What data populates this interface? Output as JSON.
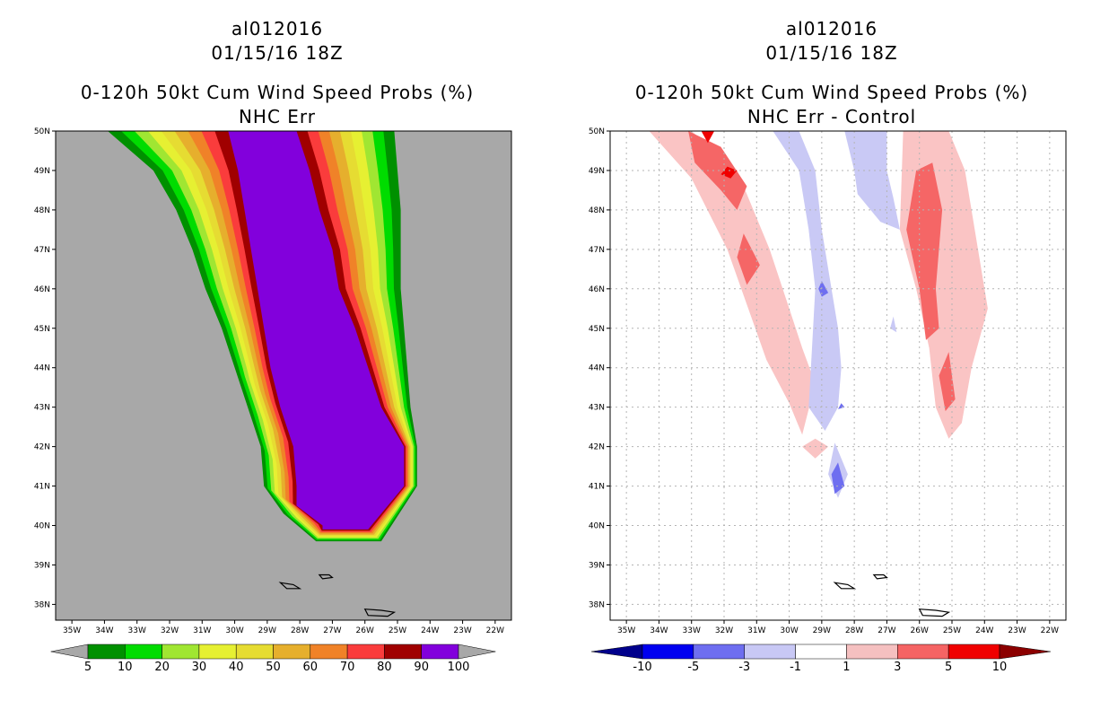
{
  "chart_data": [
    {
      "type": "map-filled-contour",
      "storm_id": "al012016",
      "datetime": "01/15/16 18Z",
      "title": "0-120h 50kt Cum Wind Speed Probs (%)",
      "subtitle": "NHC Err",
      "lon_range": [
        -35.5,
        -21.5
      ],
      "lat_range": [
        37.6,
        50
      ],
      "x_tick_labels": [
        "35W",
        "34W",
        "33W",
        "32W",
        "31W",
        "30W",
        "29W",
        "28W",
        "27W",
        "26W",
        "25W",
        "24W",
        "23W",
        "22W"
      ],
      "y_tick_labels": [
        "38N",
        "39N",
        "40N",
        "41N",
        "42N",
        "43N",
        "44N",
        "45N",
        "46N",
        "47N",
        "48N",
        "49N",
        "50N"
      ],
      "colorbar": {
        "levels": [
          "5",
          "10",
          "20",
          "30",
          "40",
          "50",
          "60",
          "70",
          "80",
          "90",
          "100"
        ],
        "colors": [
          "#a8a8a8",
          "#009000",
          "#00dc00",
          "#a0e632",
          "#e6f032",
          "#e6dc32",
          "#e6af2d",
          "#f08228",
          "#fa3c3c",
          "#a00000",
          "#8200dc",
          "#a8a8a8"
        ]
      },
      "band_colors": [
        "#009000",
        "#00dc00",
        "#a0e632",
        "#e6f032",
        "#e6dc32",
        "#e6af2d",
        "#f08228",
        "#fa3c3c",
        "#a00000"
      ],
      "core_color": "#8200dc",
      "background_color": "#a8a8a8",
      "swath_left_edge": [
        [
          -33.9,
          50
        ],
        [
          -32.5,
          49
        ],
        [
          -31.8,
          48
        ],
        [
          -31.3,
          47
        ],
        [
          -30.9,
          46
        ],
        [
          -30.4,
          45
        ],
        [
          -30,
          44
        ],
        [
          -29.6,
          43
        ],
        [
          -29.2,
          42
        ],
        [
          -29.1,
          41
        ],
        [
          -28.5,
          40.3
        ],
        [
          -27.5,
          39.6
        ]
      ],
      "swath_right_edge": [
        [
          -25.1,
          50
        ],
        [
          -25,
          49
        ],
        [
          -24.9,
          48
        ],
        [
          -24.9,
          47
        ],
        [
          -24.9,
          46
        ],
        [
          -24.8,
          45
        ],
        [
          -24.7,
          44
        ],
        [
          -24.6,
          43
        ],
        [
          -24.4,
          42
        ],
        [
          -24.4,
          41
        ],
        [
          -25.5,
          39.6
        ]
      ],
      "core_left_edge": [
        [
          -30.2,
          50
        ],
        [
          -29.9,
          49
        ],
        [
          -29.7,
          48
        ],
        [
          -29.5,
          47
        ],
        [
          -29.3,
          46
        ],
        [
          -29.1,
          45
        ],
        [
          -28.9,
          44
        ],
        [
          -28.6,
          43
        ],
        [
          -28.2,
          42
        ],
        [
          -28.1,
          41
        ],
        [
          -28.1,
          40.5
        ],
        [
          -27.3,
          40
        ],
        [
          -27.3,
          39.9
        ]
      ],
      "core_right_edge": [
        [
          -28.1,
          50
        ],
        [
          -27.7,
          49
        ],
        [
          -27.4,
          48
        ],
        [
          -27,
          47
        ],
        [
          -26.8,
          46
        ],
        [
          -26.3,
          45
        ],
        [
          -25.9,
          44
        ],
        [
          -25.5,
          43
        ],
        [
          -24.8,
          42
        ],
        [
          -24.8,
          41
        ],
        [
          -25.9,
          39.9
        ]
      ]
    },
    {
      "type": "map-filled-contour",
      "storm_id": "al012016",
      "datetime": "01/15/16 18Z",
      "title": "0-120h 50kt Cum Wind Speed Probs (%)",
      "subtitle": "NHC Err - Control",
      "lon_range": [
        -35.5,
        -21.5
      ],
      "lat_range": [
        37.6,
        50
      ],
      "x_tick_labels": [
        "35W",
        "34W",
        "33W",
        "32W",
        "31W",
        "30W",
        "29W",
        "28W",
        "27W",
        "26W",
        "25W",
        "24W",
        "23W",
        "22W"
      ],
      "y_tick_labels": [
        "38N",
        "39N",
        "40N",
        "41N",
        "42N",
        "43N",
        "44N",
        "45N",
        "46N",
        "47N",
        "48N",
        "49N",
        "50N"
      ],
      "colorbar": {
        "levels": [
          "-10",
          "-5",
          "-3",
          "-1",
          "1",
          "3",
          "5",
          "10"
        ],
        "colors": [
          "#00008c",
          "#0000f0",
          "#6e6ef0",
          "#c8c8f5",
          "#ffffff",
          "#f5c0c0",
          "#f56464",
          "#f00000",
          "#8c0000"
        ]
      },
      "positive_light_color": "#fac4c4",
      "positive_medium_color": "#f56666",
      "positive_strong_color": "#f00000",
      "negative_light_color": "#c9c9f5",
      "negative_medium_color": "#6e6ef0",
      "positive_light_regions": [
        [
          [
            -34.3,
            50
          ],
          [
            -33,
            50
          ],
          [
            -31.6,
            49
          ],
          [
            -30.6,
            47
          ],
          [
            -30,
            45.5
          ],
          [
            -29.6,
            44.5
          ],
          [
            -29.2,
            43.6
          ],
          [
            -29.6,
            42.3
          ],
          [
            -30,
            43.1
          ],
          [
            -30.7,
            44.2
          ],
          [
            -31.3,
            45.6
          ],
          [
            -31.9,
            47
          ],
          [
            -33,
            48.8
          ]
        ],
        [
          [
            -25.1,
            50
          ],
          [
            -24.6,
            49
          ],
          [
            -24.2,
            47
          ],
          [
            -23.9,
            45.5
          ],
          [
            -24.4,
            44
          ],
          [
            -24.7,
            42.6
          ],
          [
            -25.1,
            42.2
          ],
          [
            -25.5,
            43
          ],
          [
            -25.7,
            44.5
          ],
          [
            -26.1,
            46
          ],
          [
            -26.6,
            47.5
          ],
          [
            -26.5,
            50
          ]
        ],
        [
          [
            -29.2,
            42.2
          ],
          [
            -28.8,
            42
          ],
          [
            -29.2,
            41.7
          ],
          [
            -29.6,
            42
          ]
        ]
      ],
      "positive_medium_regions": [
        [
          [
            -33.1,
            50
          ],
          [
            -32.1,
            49.6
          ],
          [
            -31.3,
            48.6
          ],
          [
            -31.6,
            48
          ],
          [
            -32.1,
            48.5
          ],
          [
            -32.9,
            49.2
          ]
        ],
        [
          [
            -25.6,
            49.2
          ],
          [
            -25.3,
            48
          ],
          [
            -25.5,
            46
          ],
          [
            -25.4,
            45
          ],
          [
            -25.8,
            44.7
          ],
          [
            -26,
            46
          ],
          [
            -26.4,
            47.5
          ],
          [
            -26.1,
            49
          ]
        ],
        [
          [
            -31.4,
            47.4
          ],
          [
            -30.9,
            46.6
          ],
          [
            -31.3,
            46.1
          ],
          [
            -31.6,
            46.8
          ]
        ],
        [
          [
            -25.1,
            44.4
          ],
          [
            -24.9,
            43.2
          ],
          [
            -25.2,
            42.9
          ],
          [
            -25.4,
            43.8
          ]
        ]
      ],
      "positive_strong_regions": [
        [
          [
            -32.7,
            50
          ],
          [
            -32.3,
            50
          ],
          [
            -32.5,
            49.7
          ]
        ],
        [
          [
            -31.9,
            49.1
          ],
          [
            -31.6,
            49
          ],
          [
            -31.8,
            48.8
          ],
          [
            -32.1,
            48.9
          ]
        ]
      ],
      "negative_light_regions": [
        [
          [
            -30.5,
            50
          ],
          [
            -29.7,
            50
          ],
          [
            -29.2,
            49
          ],
          [
            -29,
            47.5
          ],
          [
            -28.7,
            46
          ],
          [
            -28.5,
            45
          ],
          [
            -28.4,
            44
          ],
          [
            -28.5,
            43
          ],
          [
            -28.9,
            42.4
          ],
          [
            -29.4,
            43
          ],
          [
            -29.3,
            44.5
          ],
          [
            -29.2,
            46
          ],
          [
            -29.4,
            47.5
          ],
          [
            -29.7,
            49
          ]
        ],
        [
          [
            -28.3,
            50
          ],
          [
            -27,
            50
          ],
          [
            -27,
            49
          ],
          [
            -26.8,
            48.3
          ],
          [
            -26.6,
            47.5
          ],
          [
            -27.2,
            47.7
          ],
          [
            -27.9,
            48.4
          ],
          [
            -28,
            49
          ]
        ],
        [
          [
            -28.6,
            42.1
          ],
          [
            -28.2,
            41.3
          ],
          [
            -28.5,
            40.7
          ],
          [
            -28.8,
            41.3
          ]
        ],
        [
          [
            -26.8,
            45.3
          ],
          [
            -26.7,
            44.9
          ],
          [
            -26.9,
            45
          ]
        ]
      ],
      "negative_medium_regions": [
        [
          [
            -28.5,
            41.6
          ],
          [
            -28.3,
            41
          ],
          [
            -28.6,
            40.8
          ],
          [
            -28.7,
            41.3
          ]
        ],
        [
          [
            -29,
            46.2
          ],
          [
            -28.8,
            45.9
          ],
          [
            -29,
            45.8
          ],
          [
            -29.1,
            46
          ]
        ],
        [
          [
            -28.4,
            43.1
          ],
          [
            -28.3,
            43
          ],
          [
            -28.5,
            42.95
          ]
        ]
      ]
    }
  ]
}
